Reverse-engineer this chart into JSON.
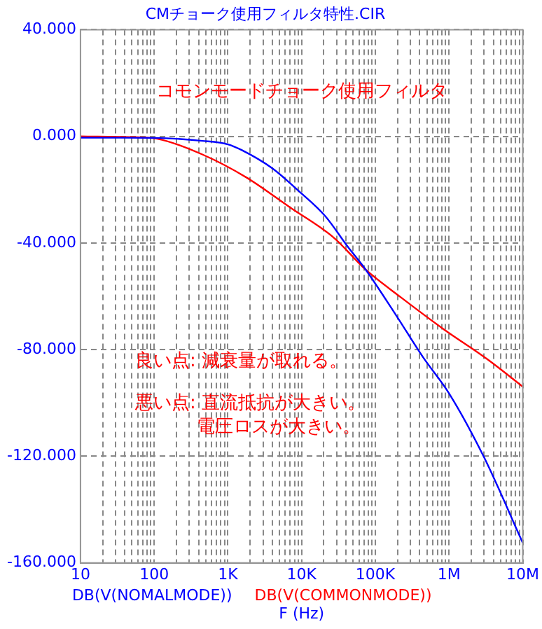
{
  "chart_data": {
    "type": "line",
    "title": "CMチョーク使用フィルタ特性.CIR",
    "xlabel": "F (Hz)",
    "log": "x",
    "grid": true,
    "marker": "none",
    "line_style": "solid",
    "xlim": [
      10,
      10000000
    ],
    "ylim": [
      -160,
      40
    ],
    "xticks": [
      10,
      {
        "value": 20,
        "label": null
      },
      {
        "value": 30,
        "label": null
      },
      {
        "value": 40,
        "label": null
      },
      {
        "value": 50,
        "label": null
      },
      {
        "value": 60,
        "label": null
      },
      {
        "value": 70,
        "label": null
      },
      {
        "value": 80,
        "label": null
      },
      {
        "value": 90,
        "label": null
      },
      100,
      {
        "value": 200,
        "label": null
      },
      {
        "value": 300,
        "label": null
      },
      {
        "value": 400,
        "label": null
      },
      {
        "value": 500,
        "label": null
      },
      {
        "value": 600,
        "label": null
      },
      {
        "value": 700,
        "label": null
      },
      {
        "value": 800,
        "label": null
      },
      {
        "value": 900,
        "label": null
      },
      {
        "value": 1000,
        "label": "1K"
      },
      {
        "value": 2000,
        "label": null
      },
      {
        "value": 3000,
        "label": null
      },
      {
        "value": 4000,
        "label": null
      },
      {
        "value": 5000,
        "label": null
      },
      {
        "value": 6000,
        "label": null
      },
      {
        "value": 7000,
        "label": null
      },
      {
        "value": 8000,
        "label": null
      },
      {
        "value": 9000,
        "label": null
      },
      {
        "value": 10000,
        "label": "10K"
      },
      {
        "value": 20000,
        "label": null
      },
      {
        "value": 30000,
        "label": null
      },
      {
        "value": 40000,
        "label": null
      },
      {
        "value": 50000,
        "label": null
      },
      {
        "value": 60000,
        "label": null
      },
      {
        "value": 70000,
        "label": null
      },
      {
        "value": 80000,
        "label": null
      },
      {
        "value": 90000,
        "label": null
      },
      {
        "value": 100000,
        "label": "100K"
      },
      {
        "value": 200000,
        "label": null
      },
      {
        "value": 300000,
        "label": null
      },
      {
        "value": 400000,
        "label": null
      },
      {
        "value": 500000,
        "label": null
      },
      {
        "value": 600000,
        "label": null
      },
      {
        "value": 700000,
        "label": null
      },
      {
        "value": 800000,
        "label": null
      },
      {
        "value": 900000,
        "label": null
      },
      {
        "value": 1000000,
        "label": "1M"
      },
      {
        "value": 2000000,
        "label": null
      },
      {
        "value": 3000000,
        "label": null
      },
      {
        "value": 4000000,
        "label": null
      },
      {
        "value": 5000000,
        "label": null
      },
      {
        "value": 6000000,
        "label": null
      },
      {
        "value": 7000000,
        "label": null
      },
      {
        "value": 8000000,
        "label": null
      },
      {
        "value": 9000000,
        "label": null
      },
      {
        "value": 10000000,
        "label": "10M"
      }
    ],
    "yticks": [
      {
        "value": 40,
        "label": "40.000"
      },
      {
        "value": 0,
        "label": "0.000"
      },
      {
        "value": -40,
        "label": "-40.000"
      },
      {
        "value": -80,
        "label": "-80.000"
      },
      {
        "value": -120,
        "label": "-120.000"
      },
      {
        "value": -160,
        "label": "-160.000"
      }
    ],
    "series": [
      {
        "name": "DB(V(NOMALMODE))",
        "color": "#0000ff",
        "x": [
          10,
          100,
          450,
          1000,
          1550,
          4000,
          9300,
          21000,
          42000,
          74000,
          190000,
          440000,
          1000000,
          3000000,
          10000000
        ],
        "values": [
          -0.5,
          -0.6,
          -1.7,
          -3,
          -5.2,
          -12,
          -20.7,
          -30,
          -41.3,
          -50,
          -67,
          -82.7,
          -96.4,
          -120.5,
          -152.5
        ]
      },
      {
        "name": "DB(V(COMMONMODE))",
        "color": "#ff0000",
        "x": [
          10,
          50,
          110,
          450,
          1800,
          7000,
          27000,
          74000,
          220000,
          850000,
          3300000,
          10000000
        ],
        "values": [
          0,
          -0.3,
          -0.9,
          -6.8,
          -15.5,
          -26.7,
          -37.9,
          -50,
          -60.3,
          -72.4,
          -83.6,
          -93.9
        ]
      }
    ],
    "annotations": [
      "コモンモードチョーク使用フィルタ",
      "良い点: 減衰量が取れる。",
      "悪い点: 直流抵抗が大きい。",
      "電圧ロスが大きい。"
    ]
  }
}
